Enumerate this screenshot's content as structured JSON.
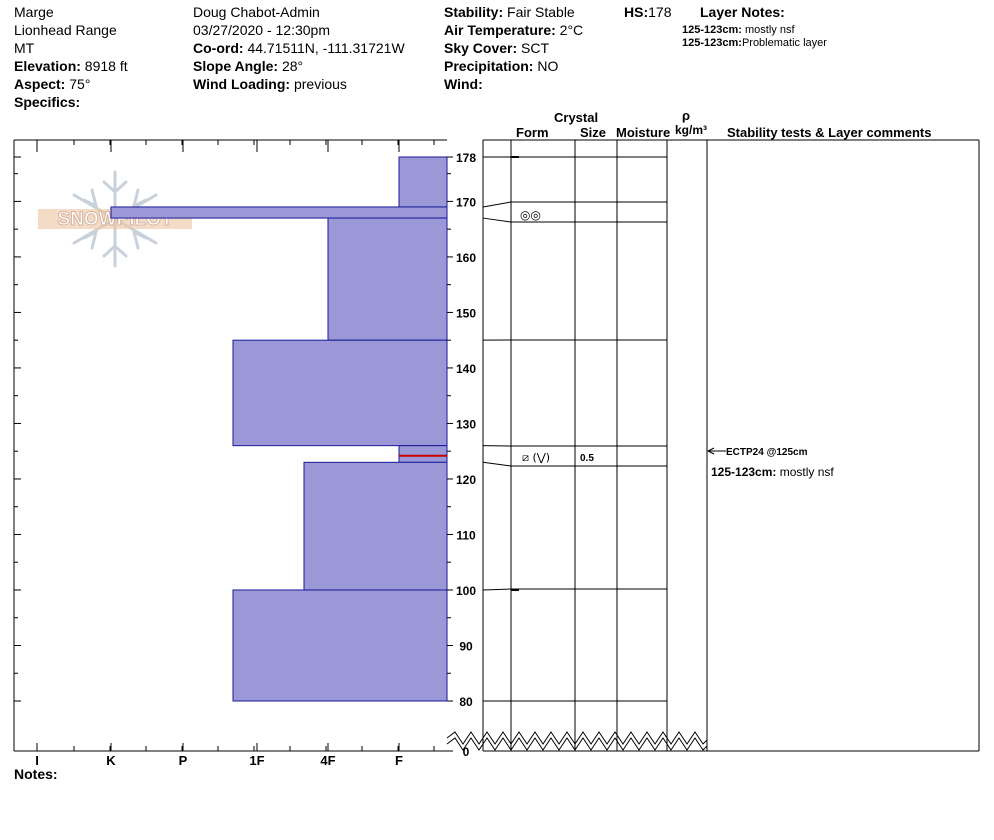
{
  "header": {
    "location": "Marge",
    "range": "Lionhead Range",
    "state": "MT",
    "elevation_label": "Elevation:",
    "elevation_value": "8918 ft",
    "aspect_label": "Aspect:",
    "aspect_value": "75°",
    "specifics_label": "Specifics:",
    "observer": "Doug Chabot-Admin",
    "datetime": "03/27/2020 - 12:30pm",
    "coord_label": "Co-ord:",
    "coord_value": "44.71511N, -111.31721W",
    "slope_label": "Slope Angle:",
    "slope_value": "28°",
    "wind_loading_label": "Wind Loading:",
    "wind_loading_value": "previous",
    "stability_label": "Stability:",
    "stability_value": "Fair Stable",
    "air_temp_label": "Air Temperature:",
    "air_temp_value": "2°C",
    "sky_label": "Sky Cover:",
    "sky_value": "SCT",
    "precip_label": "Precipitation:",
    "precip_value": "NO",
    "wind_label": "Wind:",
    "hs_label": "HS:",
    "hs_value": "178",
    "layer_notes_title": "Layer Notes:",
    "layer_notes": [
      {
        "range": "125-123cm:",
        "text": "mostly nsf"
      },
      {
        "range": "125-123cm:",
        "text": "Problematic layer"
      }
    ]
  },
  "logo_text": "SNOWPILOT",
  "columns": {
    "crystal": "Crystal",
    "form": "Form",
    "size": "Size",
    "moisture": "Moisture",
    "rho": "ρ",
    "density_unit": "kg/m³",
    "stability": "Stability tests & Layer comments"
  },
  "crystal_layers": [
    {
      "form_symbol": "◎◎",
      "size": ""
    },
    {
      "form_symbol": "⧄ (⋁)",
      "size": "0.5"
    }
  ],
  "stability_test": "ECTP24 @125cm",
  "comment": {
    "range": "125-123cm:",
    "text": "mostly nsf"
  },
  "notes_label": "Notes:",
  "colors": {
    "bar_fill": "#9a98d6",
    "bar_stroke": "#1a1a99",
    "weak_layer": "#cc0000"
  },
  "chart_data": {
    "type": "bar",
    "orientation": "horizontal",
    "title": "",
    "ylabel": "",
    "y_ticks": [
      178,
      170,
      160,
      150,
      140,
      130,
      120,
      110,
      100,
      90,
      80,
      0
    ],
    "x_categories": [
      "I",
      "K",
      "P",
      "1F",
      "4F",
      "F"
    ],
    "series": [
      {
        "values": [
          {
            "top": 178,
            "bottom": 169,
            "hardness": "F"
          },
          {
            "top": 169,
            "bottom": 167,
            "hardness": "K"
          },
          {
            "top": 167,
            "bottom": 145,
            "hardness": "4F"
          },
          {
            "top": 145,
            "bottom": 126,
            "hardness": "1F+"
          },
          {
            "top": 126,
            "bottom": 123,
            "hardness": "F"
          },
          {
            "top": 123,
            "bottom": 100,
            "hardness": "4F+"
          },
          {
            "top": 100,
            "bottom": 80,
            "hardness": "1F+"
          }
        ]
      }
    ],
    "weak_layer": {
      "top": 125,
      "bottom": 123
    }
  }
}
